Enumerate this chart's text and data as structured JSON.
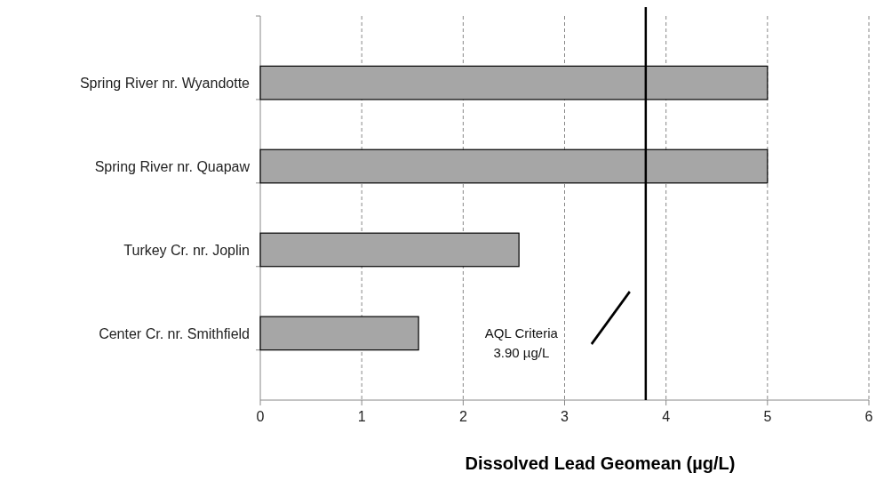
{
  "chart_data": {
    "type": "bar",
    "orientation": "horizontal",
    "xlabel": "Dissolved Lead Geomean (µg/L)",
    "categories": [
      "Spring River nr. Wyandotte",
      "Spring River nr. Quapaw",
      "Turkey Cr. nr. Joplin",
      "Center Cr. nr. Smithfield"
    ],
    "values": [
      5.0,
      5.0,
      2.55,
      1.56
    ],
    "color": "#a6a6a6",
    "xlim": [
      0,
      6
    ],
    "xticks": [
      0,
      1,
      2,
      3,
      4,
      5,
      6
    ],
    "grid": "x",
    "ref_lines": [
      {
        "axis": "x",
        "value": 3.8,
        "label": "AQL Criteria\n3.90 µg/L",
        "color": "#000000"
      }
    ]
  }
}
